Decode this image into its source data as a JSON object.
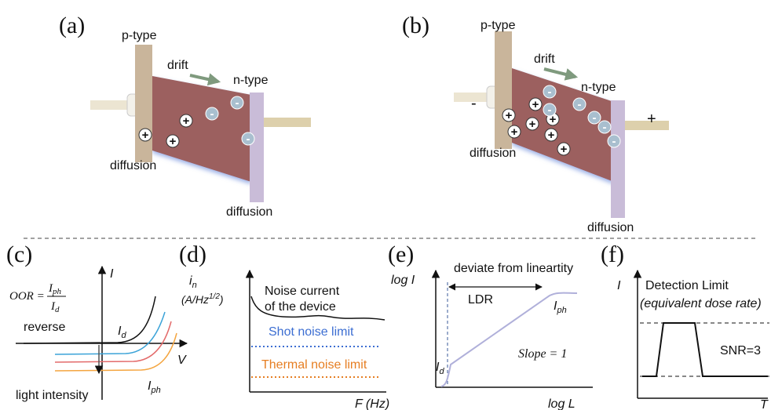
{
  "panel_a": {
    "label": "(a)",
    "p_type": "p-type",
    "drift": "drift",
    "n_type": "n-type",
    "diffusion_left": "diffusion",
    "diffusion_right": "diffusion",
    "plus": "+",
    "minus": "-"
  },
  "panel_b": {
    "label": "(b)",
    "p_type": "p-type",
    "drift": "drift",
    "n_type": "n-type",
    "diffusion_left": "diffusion",
    "diffusion_right": "diffusion",
    "plus": "+",
    "minus": "-",
    "electrode_left": "-",
    "electrode_right": "+"
  },
  "panel_c": {
    "label": "(c)",
    "y_axis": "I",
    "formula": {
      "lhs": "OOR =",
      "num": "I",
      "num_sub": "ph",
      "den": "I",
      "den_sub": "d"
    },
    "reverse": "reverse",
    "dark_curve": {
      "symbol": "I",
      "sub": "d"
    },
    "x_axis": "V",
    "light_intensity": "light intensity",
    "photo_curve": {
      "symbol": "I",
      "sub": "ph"
    }
  },
  "panel_d": {
    "label": "(d)",
    "y_axis": {
      "symbol": "i",
      "sub": "n"
    },
    "y_unit": {
      "main": "(A/Hz",
      "sup": "1/2",
      "end": ")"
    },
    "noise_current": [
      "Noise current",
      "of the device"
    ],
    "shot_noise": "Shot noise limit",
    "thermal_noise": "Thermal noise limit",
    "x_axis": "F (Hz)"
  },
  "panel_e": {
    "label": "(e)",
    "y_axis": "log I",
    "deviate": "deviate from lineartity",
    "ldr": "LDR",
    "photo": {
      "symbol": "I",
      "sub": "ph"
    },
    "slope": "Slope = 1",
    "dark": {
      "symbol": "I",
      "sub": "d"
    },
    "x_axis": "log L"
  },
  "panel_f": {
    "label": "(f)",
    "y_axis": "I",
    "detection_limit": "Detection Limit",
    "dose_rate": "(equivalent dose rate)",
    "snr": "SNR=3",
    "x_axis": "T"
  }
}
